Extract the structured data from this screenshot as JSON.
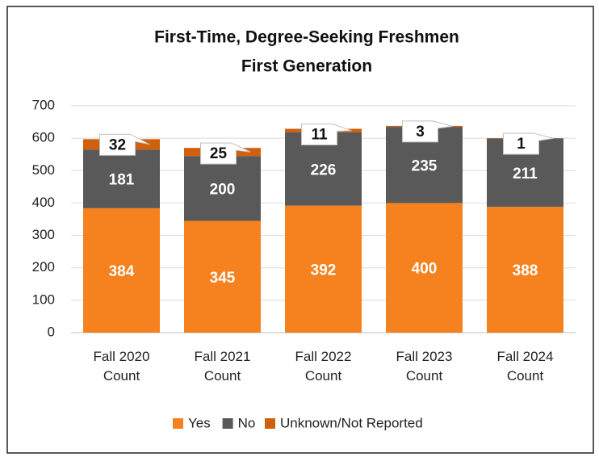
{
  "chart_data": {
    "type": "stacked_bar",
    "title": "First-Time, Degree-Seeking Freshmen",
    "subtitle": "First Generation",
    "categories": [
      "Fall 2020 Count",
      "Fall 2021 Count",
      "Fall 2022 Count",
      "Fall 2023 Count",
      "Fall 2024 Count"
    ],
    "series": [
      {
        "name": "Yes",
        "color": "#f5821f",
        "values": [
          384,
          345,
          392,
          400,
          388
        ]
      },
      {
        "name": "No",
        "color": "#595959",
        "values": [
          181,
          200,
          226,
          235,
          211
        ]
      },
      {
        "name": "Unknown/Not Reported",
        "color": "#d0600c",
        "values": [
          32,
          25,
          11,
          3,
          1
        ]
      }
    ],
    "ylim": [
      0,
      700
    ],
    "yticks": [
      0,
      100,
      200,
      300,
      400,
      500,
      600,
      700
    ],
    "grid": true,
    "legend": "bottom"
  }
}
